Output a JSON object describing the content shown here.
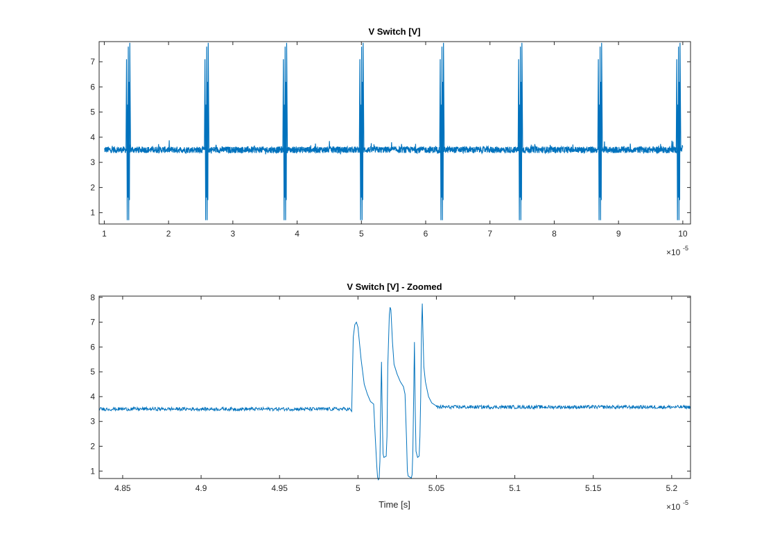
{
  "chart_data": [
    {
      "type": "line",
      "title": "V Switch [V]",
      "xlabel": "",
      "ylabel": "",
      "xlim": [
        9.2e-06,
        0.0001012
      ],
      "ylim": [
        0.55,
        7.8
      ],
      "xticks": [
        1e-05,
        2e-05,
        3e-05,
        4e-05,
        5e-05,
        6e-05,
        7e-05,
        8e-05,
        9e-05,
        0.0001
      ],
      "xtick_labels": [
        "1",
        "2",
        "3",
        "4",
        "5",
        "6",
        "7",
        "8",
        "9",
        "10"
      ],
      "yticks": [
        1,
        2,
        3,
        4,
        5,
        6,
        7
      ],
      "ytick_labels": [
        "1",
        "2",
        "3",
        "4",
        "5",
        "6",
        "7"
      ],
      "x_exponent": {
        "base": "×10",
        "power": "-5"
      },
      "grid": false,
      "color": "#0072BD",
      "series": [
        {
          "baseline": 3.5,
          "noise_band": [
            3.35,
            3.7
          ],
          "burst_times": [
            1.37e-05,
            2.59e-05,
            3.81e-05,
            5e-05,
            6.25e-05,
            7.47e-05,
            8.71e-05,
            9.93e-05
          ],
          "burst_max": 7.75,
          "burst_min": 0.65
        }
      ]
    },
    {
      "type": "line",
      "title": "V Switch [V] - Zoomed",
      "xlabel": "Time [s]",
      "ylabel": "",
      "xlim": [
        4.835e-05,
        5.212e-05
      ],
      "ylim": [
        0.7,
        8.05
      ],
      "xticks": [
        4.85e-05,
        4.9e-05,
        4.95e-05,
        5e-05,
        5.05e-05,
        5.1e-05,
        5.15e-05,
        5.2e-05
      ],
      "xtick_labels": [
        "4.85",
        "4.9",
        "4.95",
        "5",
        "5.05",
        "5.1",
        "5.15",
        "5.2"
      ],
      "yticks": [
        1,
        2,
        3,
        4,
        5,
        6,
        7,
        8
      ],
      "ytick_labels": [
        "1",
        "2",
        "3",
        "4",
        "5",
        "6",
        "7",
        "8"
      ],
      "x_exponent": {
        "base": "×10",
        "power": "-5"
      },
      "grid": false,
      "color": "#0072BD",
      "series": [
        {
          "baseline_before": 3.5,
          "baseline_after": 3.58,
          "key_points": [
            [
              4.835e-05,
              3.5
            ],
            [
              4.995e-05,
              3.5
            ],
            [
              4.998e-05,
              7.0
            ],
            [
              5.01e-05,
              3.6
            ],
            [
              5.01e-05,
              0.65
            ],
            [
              5.013e-05,
              5.4
            ],
            [
              5.017e-05,
              1.55
            ],
            [
              5.021e-05,
              7.6
            ],
            [
              5.035e-05,
              0.7
            ],
            [
              5.038e-05,
              6.2
            ],
            [
              5.041e-05,
              1.5
            ],
            [
              5.045e-05,
              7.75
            ],
            [
              5.055e-05,
              3.58
            ],
            [
              5.212e-05,
              3.58
            ]
          ]
        }
      ]
    }
  ]
}
